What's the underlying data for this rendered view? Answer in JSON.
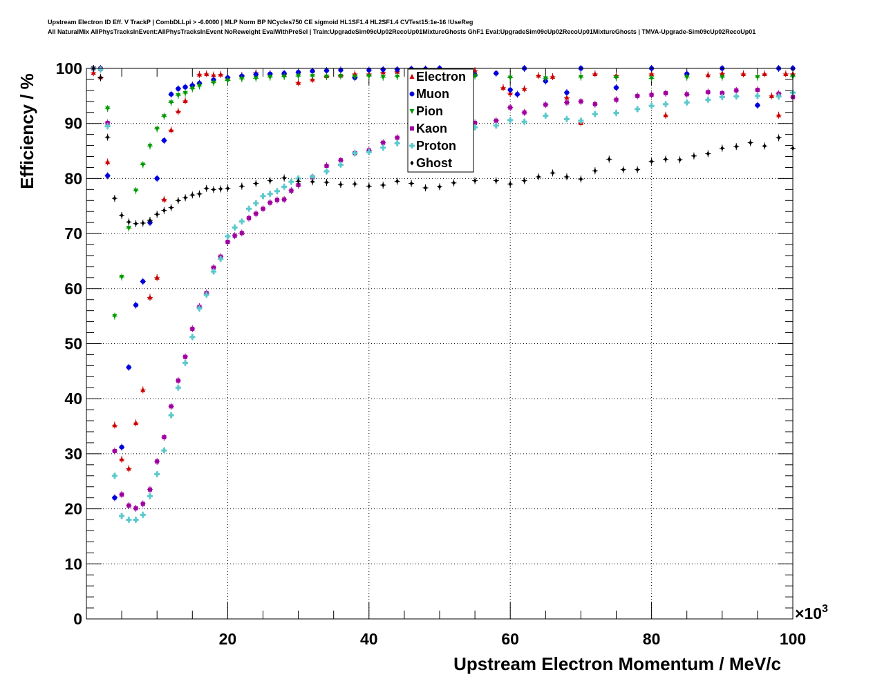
{
  "title_line1": "Upstream Electron ID Eff. V TrackP | CombDLLpi > -6.0000 | MLP Norm BP NCycles750 CE sigmoid HL1SF1.4 HL2SF1.4 CVTest15:1e-16 !UseReg",
  "title_line2": "All NaturalMix AllPhysTracksInEvent:AllPhysTracksInEvent NoReweight EvalWithPreSel | Train:UpgradeSim09cUp02RecoUp01MixtureGhosts GhF1 Eval:UpgradeSim09cUp02RecoUp01MixtureGhosts | TMVA-Upgrade-Sim09cUp02RecoUp01",
  "chart_data": {
    "type": "scatter",
    "xlabel": "Upstream Electron Momentum / MeV/c",
    "ylabel": "Efficiency / %",
    "x_multiplier": "×10",
    "x_multiplier_exp": "3",
    "xlim": [
      0,
      100
    ],
    "ylim": [
      0,
      100
    ],
    "x_ticks": [
      20,
      40,
      60,
      80,
      100
    ],
    "y_ticks": [
      0,
      10,
      20,
      30,
      40,
      50,
      60,
      70,
      80,
      90,
      100
    ],
    "grid": true,
    "legend_position": "top-center",
    "series": [
      {
        "name": "Electron",
        "color": "#cc0000",
        "marker": "triangle-up",
        "x": [
          1,
          2,
          3,
          4,
          5,
          6,
          7,
          8,
          9,
          10,
          11,
          12,
          13,
          14,
          15,
          16,
          17,
          18,
          19,
          20,
          22,
          24,
          26,
          28,
          30,
          32,
          34,
          36,
          38,
          40,
          42,
          44,
          46,
          48,
          50,
          55,
          59,
          60,
          62,
          64,
          66,
          68,
          70,
          72,
          75,
          80,
          82,
          85,
          88,
          90,
          93,
          96,
          97,
          98,
          99,
          100
        ],
        "y": [
          99.2,
          98.4,
          83,
          35.2,
          29,
          27.3,
          35.6,
          41.6,
          58.4,
          62,
          76.2,
          88.8,
          92.2,
          94.1,
          97,
          98.9,
          99.0,
          98.8,
          98.9,
          98.3,
          98.7,
          99.2,
          99,
          98.9,
          97.4,
          98,
          98.6,
          98.7,
          99,
          99,
          99.3,
          99.4,
          99.5,
          99.5,
          99.6,
          99.6,
          96.5,
          95.5,
          96.3,
          98.7,
          98.5,
          94.7,
          90.1,
          99.0,
          98.7,
          99,
          91.5,
          99,
          98.8,
          99.1,
          99,
          99,
          95.0,
          91.5,
          99,
          99
        ]
      },
      {
        "name": "Muon",
        "color": "#0000dd",
        "marker": "circle",
        "x": [
          1,
          2,
          3,
          4,
          5,
          6,
          7,
          8,
          9,
          10,
          11,
          12,
          13,
          14,
          15,
          16,
          18,
          20,
          22,
          24,
          26,
          28,
          30,
          32,
          34,
          36,
          38,
          40,
          42,
          44,
          46,
          48,
          50,
          55,
          58,
          60,
          61,
          62,
          65,
          68,
          70,
          75,
          80,
          85,
          90,
          95,
          98,
          100
        ],
        "y": [
          100,
          100,
          80.5,
          22,
          31.2,
          45.7,
          57,
          61.3,
          72,
          80,
          86.9,
          95.3,
          96.3,
          96.6,
          96.9,
          97.3,
          97.9,
          98.3,
          98.6,
          98.9,
          99,
          99.1,
          99.3,
          99.5,
          99.6,
          99.7,
          98.3,
          99.7,
          99.8,
          99.8,
          99.9,
          99.9,
          100,
          98.8,
          99.1,
          96.1,
          95.3,
          100,
          97.7,
          95.6,
          100,
          96.5,
          100,
          99,
          100,
          93.3,
          100,
          100
        ]
      },
      {
        "name": "Pion",
        "color": "#009900",
        "marker": "triangle-down",
        "x": [
          1,
          2,
          3,
          4,
          5,
          6,
          7,
          8,
          9,
          10,
          11,
          12,
          13,
          14,
          15,
          16,
          18,
          20,
          22,
          24,
          26,
          28,
          30,
          32,
          34,
          36,
          38,
          40,
          42,
          44,
          46,
          48,
          50,
          55,
          60,
          65,
          70,
          75,
          80,
          85,
          90,
          95,
          100
        ],
        "y": [
          100,
          99.9,
          92.7,
          55,
          62.1,
          71,
          77.8,
          82.5,
          85.9,
          89,
          91.3,
          93.8,
          95.1,
          95.5,
          96.3,
          96.8,
          97.4,
          97.8,
          98.1,
          98.2,
          98.4,
          98.5,
          98.6,
          98.6,
          98.5,
          98.6,
          98.5,
          98.6,
          98.4,
          98.5,
          98.4,
          98.5,
          98.6,
          98.6,
          98.3,
          98.2,
          98.4,
          98.3,
          98.2,
          98.4,
          98.4,
          98.4,
          98.5
        ]
      },
      {
        "name": "Kaon",
        "color": "#a000a0",
        "marker": "square",
        "x": [
          1,
          2,
          3,
          4,
          5,
          6,
          7,
          8,
          9,
          10,
          11,
          12,
          13,
          14,
          15,
          16,
          17,
          18,
          19,
          20,
          21,
          22,
          23,
          24,
          25,
          26,
          27,
          28,
          29,
          30,
          32,
          34,
          36,
          38,
          40,
          42,
          44,
          46,
          48,
          50,
          55,
          58,
          60,
          62,
          65,
          68,
          70,
          72,
          75,
          78,
          80,
          82,
          85,
          88,
          90,
          92,
          95,
          98,
          100
        ],
        "y": [
          100,
          99.9,
          90.1,
          30.5,
          22.6,
          20.6,
          20.1,
          20.9,
          23.5,
          28.6,
          33,
          38.6,
          43.3,
          47.6,
          52.7,
          56.7,
          59.2,
          63.8,
          65.8,
          68.5,
          69.6,
          70.1,
          72.8,
          73.6,
          74.5,
          75.6,
          76.1,
          76.2,
          77.8,
          78.8,
          80.2,
          82.3,
          83.3,
          84.6,
          85.1,
          86.5,
          87.4,
          88.4,
          89,
          89.3,
          90.1,
          90.5,
          92.9,
          92,
          93.4,
          93.8,
          94,
          93.5,
          94.3,
          95,
          95.2,
          95.5,
          95.3,
          95.7,
          95.5,
          96,
          96.1,
          95.4,
          94.8
        ]
      },
      {
        "name": "Proton",
        "color": "#5bc8cc",
        "marker": "cross",
        "x": [
          1,
          2,
          3,
          4,
          5,
          6,
          7,
          8,
          9,
          10,
          11,
          12,
          13,
          14,
          15,
          16,
          17,
          18,
          19,
          20,
          21,
          22,
          23,
          24,
          25,
          26,
          27,
          28,
          29,
          30,
          32,
          34,
          36,
          38,
          40,
          42,
          44,
          46,
          48,
          50,
          55,
          58,
          60,
          62,
          65,
          68,
          70,
          72,
          75,
          78,
          80,
          82,
          85,
          88,
          90,
          92,
          95,
          98,
          100
        ],
        "y": [
          100,
          99.8,
          89.5,
          26,
          18.7,
          18,
          18,
          18.9,
          22.3,
          26.3,
          30.6,
          37,
          42,
          46.5,
          51.2,
          56.4,
          58.9,
          63.1,
          65.4,
          69.5,
          71.1,
          72.2,
          74.5,
          75.5,
          76.8,
          77.2,
          77.7,
          78.5,
          79.4,
          80,
          80.3,
          81.3,
          82.5,
          84.6,
          84.8,
          85.6,
          86.4,
          86.9,
          87.6,
          88,
          89.3,
          89.6,
          90.6,
          90.3,
          91.4,
          90.8,
          90.5,
          91.7,
          91.9,
          92.6,
          93.2,
          93.5,
          93.8,
          94.3,
          94.8,
          94.9,
          95,
          94.9,
          95.6
        ]
      },
      {
        "name": "Ghost",
        "color": "#000000",
        "marker": "diamond",
        "x": [
          1,
          2,
          3,
          4,
          5,
          6,
          7,
          8,
          9,
          10,
          11,
          12,
          13,
          14,
          15,
          16,
          17,
          18,
          19,
          20,
          22,
          24,
          26,
          28,
          30,
          32,
          34,
          36,
          38,
          40,
          42,
          44,
          46,
          48,
          50,
          52,
          55,
          58,
          60,
          62,
          64,
          66,
          68,
          70,
          72,
          74,
          76,
          78,
          80,
          82,
          84,
          86,
          88,
          90,
          92,
          94,
          96,
          98,
          100
        ],
        "y": [
          100,
          98.3,
          87.5,
          76.4,
          73.3,
          72.1,
          71.8,
          71.9,
          72.4,
          73.5,
          74.2,
          74.7,
          76,
          76.5,
          77,
          77.2,
          78.2,
          78,
          78.1,
          78.2,
          78.6,
          79.1,
          79.6,
          80.1,
          79.5,
          79.4,
          79.3,
          78.9,
          79,
          78.6,
          78.8,
          79.5,
          79.1,
          78.3,
          78.5,
          79.2,
          79.6,
          79.6,
          79,
          79.6,
          80.3,
          81,
          80.3,
          79.9,
          81.4,
          83.5,
          81.6,
          81.6,
          83.1,
          83.5,
          83.4,
          84.1,
          84.5,
          85.5,
          85.8,
          86.5,
          85.9,
          87.4,
          85.5
        ]
      }
    ]
  }
}
